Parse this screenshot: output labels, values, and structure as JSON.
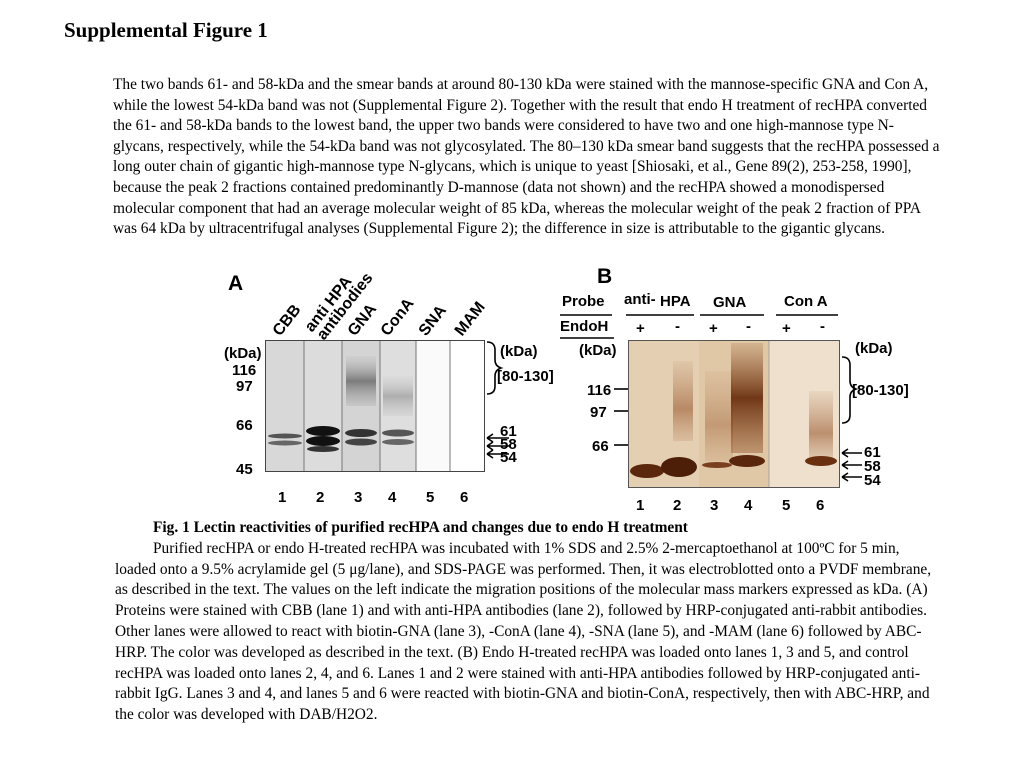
{
  "title": "Supplemental Figure 1",
  "intro": "The two bands 61- and 58-kDa and the smear bands at around 80-130 kDa were stained with the mannose-specific GNA and Con A, while the lowest 54-kDa band was not (Supplemental Figure 2). Together with the result that endo H treatment of recHPA converted the 61- and 58-kDa bands to the lowest band, the upper two bands were considered to have two and one high-mannose type N-glycans, respectively, while the 54-kDa band was not glycosylated. The 80–130 kDa smear band suggests that the recHPA possessed a long outer chain of gigantic high-mannose type N-glycans, which is unique to yeast [Shiosaki, et al., Gene 89(2), 253-258, 1990], because the peak 2 fractions contained predominantly D-mannose (data not shown) and the recHPA showed a monodispersed molecular component that had an average molecular weight of 85 kDa, whereas the molecular weight of the peak 2 fraction of PPA was 64 kDa by ultracentrifugal analyses (Supplemental Figure 2); the difference in size is attributable to the gigantic glycans.",
  "panelA": {
    "letter": "A",
    "lane_headers": [
      "CBB",
      "anti HPA",
      "antibodies",
      "GNA",
      "ConA",
      "SNA",
      "MAM"
    ],
    "kda_left": "(kDa)",
    "kda_right": "(kDa)",
    "markers": [
      "116",
      "97",
      "66",
      "45"
    ],
    "smear": "[80-130]",
    "bands": [
      "61",
      "58",
      "54"
    ],
    "lanes": [
      "1",
      "2",
      "3",
      "4",
      "5",
      "6"
    ]
  },
  "panelB": {
    "letter": "B",
    "probe_label": "Probe",
    "endoh_label": "EndoH",
    "probes": [
      "anti-",
      "HPA",
      "GNA",
      "Con A"
    ],
    "signs": [
      "+",
      "-",
      "+",
      "-",
      "+",
      "-"
    ],
    "kda_left": "(kDa)",
    "kda_right": "(kDa)",
    "markers": [
      "116",
      "97",
      "66"
    ],
    "smear": "[80-130]",
    "bands": [
      "61",
      "58",
      "54"
    ],
    "lanes": [
      "1",
      "2",
      "3",
      "4",
      "5",
      "6"
    ]
  },
  "caption": {
    "title": "Fig. 1   Lectin reactivities of purified recHPA and changes due to endo H treatment",
    "body": "Purified recHPA or endo H-treated recHPA was incubated with 1% SDS and 2.5% 2-mercaptoethanol at 100ºC for 5 min, loaded onto a 9.5% acrylamide gel (5 μg/lane), and SDS-PAGE was performed. Then, it was electroblotted onto a PVDF membrane, as described in the text. The values on the left indicate the migration positions of the molecular mass markers expressed as kDa. (A) Proteins were stained with CBB (lane 1) and with anti-HPA antibodies (lane 2), followed by HRP-conjugated anti-rabbit antibodies. Other lanes were allowed to react with biotin-GNA (lane 3), -ConA (lane 4), -SNA (lane 5), and -MAM (lane 6) followed by ABC-HRP. The color was developed as described in the text. (B) Endo H-treated recHPA was loaded onto lanes 1, 3 and 5, and control recHPA was loaded onto lanes 2, 4, and 6. Lanes 1 and 2 were stained with anti-HPA antibodies followed by HRP-conjugated anti-rabbit IgG. Lanes 3 and 4, and lanes 5 and 6 were reacted with biotin-GNA and biotin-ConA, respectively, then with ABC-HRP, and the color was developed with DAB/H2O2."
  }
}
